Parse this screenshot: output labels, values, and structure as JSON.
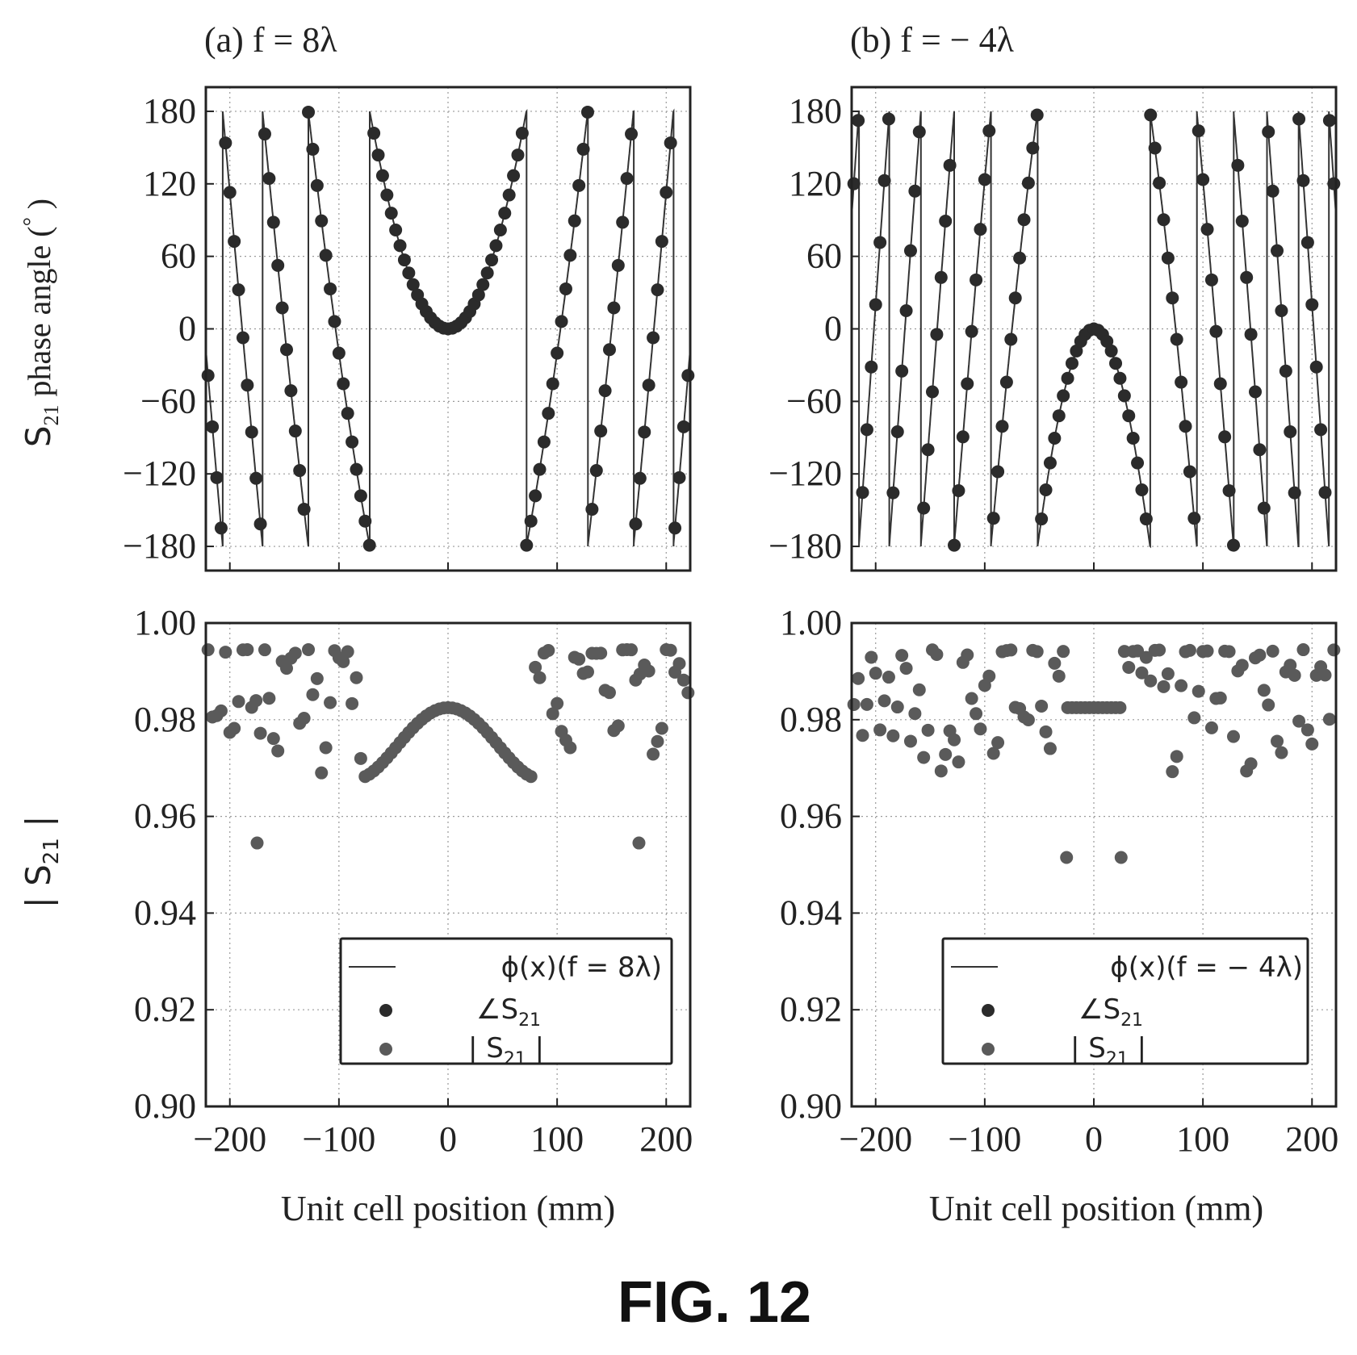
{
  "figure_label": "FIG. 12",
  "panels": {
    "a_title": "(a)  f = 8λ",
    "b_title": "(b)  f = − 4λ"
  },
  "y_axis_top": "S21 phase angle (°)",
  "y_axis_bottom": "| S21 |",
  "x_axis": "Unit cell position (mm)",
  "legend": {
    "a_line": "ϕ(x)(f = 8λ)",
    "b_line": "ϕ(x)(f = − 4λ)",
    "phase": "∠S21",
    "mag": "| S21 |"
  },
  "colors": {
    "phase_marker": "#2b2b2b",
    "mag_marker": "#5a5a5a",
    "line": "#333333"
  },
  "chart_data": [
    {
      "type": "line+scatter",
      "panel": "a",
      "title": "(a)  f = 8λ",
      "ylabel": "S21 phase angle (°)",
      "xlim": [
        -222,
        222
      ],
      "ylim": [
        -200,
        200
      ],
      "yticks": [
        180,
        120,
        60,
        0,
        -60,
        -120,
        -180
      ],
      "focal_length_mm": 8,
      "x_spacing_mm": 4,
      "series": [
        "ϕ(x)(f = 8λ)",
        "∠S21"
      ],
      "grid": true
    },
    {
      "type": "line+scatter",
      "panel": "b",
      "title": "(b)  f = − 4λ",
      "ylabel": "S21 phase angle (°)",
      "xlim": [
        -222,
        222
      ],
      "ylim": [
        -200,
        200
      ],
      "yticks": [
        180,
        120,
        60,
        0,
        -60,
        -120,
        -180
      ],
      "focal_length_mm": -4,
      "x_spacing_mm": 4,
      "series": [
        "ϕ(x)(f = − 4λ)",
        "∠S21"
      ],
      "grid": true
    },
    {
      "type": "scatter",
      "panel": "a",
      "xlabel": "Unit cell position (mm)",
      "ylabel": "| S21 |",
      "xlim": [
        -222,
        222
      ],
      "ylim": [
        0.9,
        1.0
      ],
      "yticks": [
        1.0,
        0.98,
        0.96,
        0.94,
        0.92,
        0.9
      ],
      "ytick_labels": [
        "1.00",
        "0.98",
        "0.96",
        "0.94",
        "0.92",
        "0.90"
      ],
      "xticks": [
        -200,
        -100,
        0,
        100,
        200
      ],
      "xtick_labels": [
        "−200",
        "−100",
        "0",
        "100",
        "200"
      ],
      "series": [
        "| S21 |"
      ],
      "outliers": [
        [
          -175,
          0.9545
        ],
        [
          175,
          0.9545
        ]
      ],
      "legend_position": "lower-right",
      "grid": true
    },
    {
      "type": "scatter",
      "panel": "b",
      "xlabel": "Unit cell position (mm)",
      "ylabel": "| S21 |",
      "xlim": [
        -222,
        222
      ],
      "ylim": [
        0.9,
        1.0
      ],
      "yticks": [
        1.0,
        0.98,
        0.96,
        0.94,
        0.92,
        0.9
      ],
      "ytick_labels": [
        "1.00",
        "0.98",
        "0.96",
        "0.94",
        "0.92",
        "0.90"
      ],
      "xticks": [
        -200,
        -100,
        0,
        100,
        200
      ],
      "xtick_labels": [
        "−200",
        "−100",
        "0",
        "100",
        "200"
      ],
      "series": [
        "| S21 |"
      ],
      "outliers": [
        [
          -25,
          0.9515
        ],
        [
          25,
          0.9515
        ]
      ],
      "legend_position": "lower-right",
      "grid": true
    }
  ]
}
